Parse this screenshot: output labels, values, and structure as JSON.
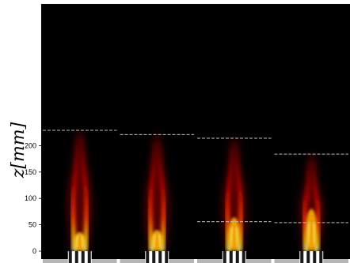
{
  "chart_data": {
    "type": "heatmap",
    "colormap": "hot",
    "background_color": "#000000",
    "title": "",
    "xlabel": "",
    "ylabel": "z[mm]",
    "ylim": [
      0,
      235
    ],
    "yticks": [
      0,
      50,
      100,
      150,
      200
    ],
    "yticklabels": [
      "0",
      "50",
      "100",
      "150",
      "200"
    ],
    "grid": false,
    "legend": "none",
    "panels": [
      {
        "index": 1,
        "flame_top_line": 229,
        "peak_intensity_z": 8,
        "lower_line": null
      },
      {
        "index": 2,
        "flame_top_line": 221,
        "peak_intensity_z": 10,
        "lower_line": null
      },
      {
        "index": 3,
        "flame_top_line": 214,
        "peak_intensity_z": 22,
        "lower_line": 56
      },
      {
        "index": 4,
        "flame_top_line": 184,
        "peak_intensity_z": 30,
        "lower_line": 54
      }
    ],
    "reference_line_color": "#bbbbbb"
  }
}
